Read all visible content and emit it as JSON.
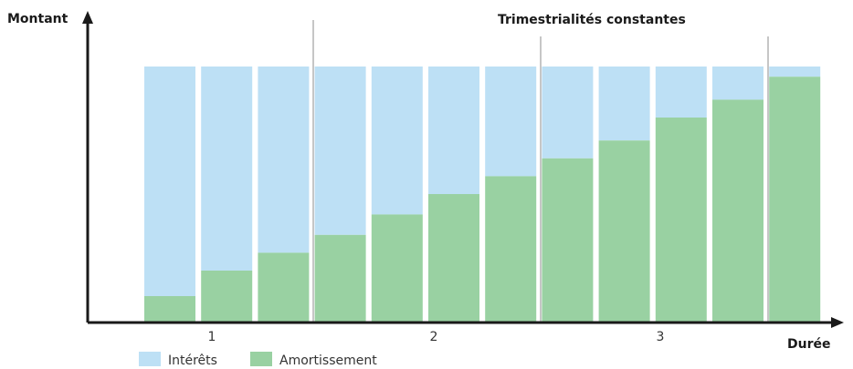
{
  "chart_data": {
    "type": "bar",
    "stacked": true,
    "title": "Trimestrialités constantes",
    "ylabel": "Montant",
    "xlabel": "Durée",
    "year_labels": [
      "1",
      "2",
      "3"
    ],
    "periods_per_year": 4,
    "ylim": [
      0,
      1
    ],
    "series": [
      {
        "name": "Amortissement",
        "color": "#99d1a2",
        "values": [
          0.1,
          0.2,
          0.27,
          0.34,
          0.42,
          0.5,
          0.57,
          0.64,
          0.71,
          0.8,
          0.87,
          0.96
        ]
      },
      {
        "name": "Intérêts",
        "color": "#bde0f5",
        "values": [
          0.9,
          0.8,
          0.73,
          0.66,
          0.58,
          0.5,
          0.43,
          0.36,
          0.29,
          0.2,
          0.13,
          0.04
        ]
      }
    ]
  },
  "legend": {
    "interets": {
      "label": "Intérêts",
      "color": "#bde0f5"
    },
    "amortissement": {
      "label": "Amortissement",
      "color": "#99d1a2"
    }
  }
}
